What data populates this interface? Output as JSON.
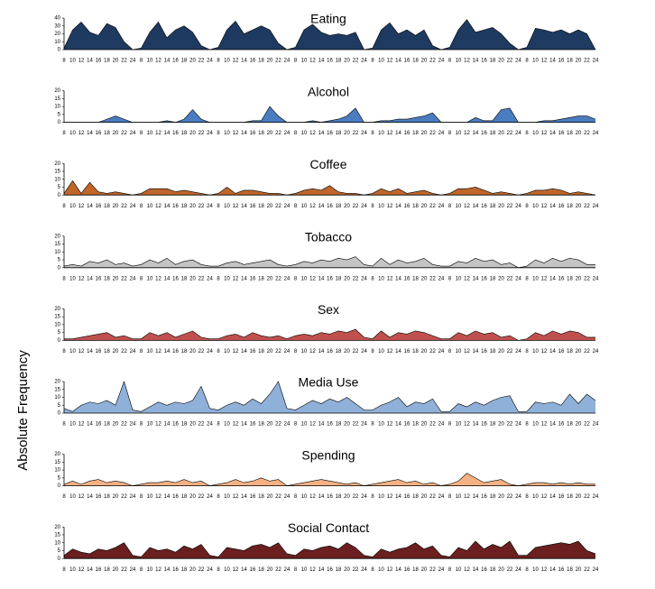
{
  "ylabel": "Absolute Frequency",
  "chart_data": [
    {
      "type": "area",
      "title": "Eating",
      "color": "#1f3a60",
      "categories": [
        8,
        10,
        12,
        14,
        16,
        18,
        20,
        22,
        24,
        8,
        10,
        12,
        14,
        16,
        18,
        20,
        22,
        24,
        8,
        10,
        12,
        14,
        16,
        18,
        20,
        22,
        24,
        8,
        10,
        12,
        14,
        16,
        18,
        20,
        22,
        24,
        8,
        10,
        12,
        14,
        16,
        18,
        20,
        22,
        24,
        8,
        10,
        12,
        14,
        16,
        18,
        20,
        22,
        24,
        8,
        10,
        12,
        14,
        16,
        18,
        20,
        22,
        24
      ],
      "values": [
        2,
        25,
        35,
        22,
        18,
        33,
        28,
        10,
        0,
        2,
        22,
        35,
        15,
        25,
        30,
        22,
        5,
        0,
        3,
        25,
        36,
        20,
        25,
        30,
        25,
        8,
        0,
        3,
        25,
        32,
        22,
        18,
        20,
        18,
        22,
        0,
        2,
        25,
        34,
        20,
        25,
        18,
        25,
        5,
        0,
        3,
        25,
        38,
        22,
        25,
        28,
        20,
        8,
        0,
        3,
        27,
        25,
        22,
        25,
        20,
        25,
        20,
        0
      ],
      "ylim": [
        0,
        40
      ],
      "yticks": [
        0,
        10,
        20,
        30,
        40
      ]
    },
    {
      "type": "area",
      "title": "Alcohol",
      "color": "#4a7cc0",
      "categories": [
        8,
        10,
        12,
        14,
        16,
        18,
        20,
        22,
        24,
        8,
        10,
        12,
        14,
        16,
        18,
        20,
        22,
        24,
        8,
        10,
        12,
        14,
        16,
        18,
        20,
        22,
        24,
        8,
        10,
        12,
        14,
        16,
        18,
        20,
        22,
        24,
        8,
        10,
        12,
        14,
        16,
        18,
        20,
        22,
        24,
        8,
        10,
        12,
        14,
        16,
        18,
        20,
        22,
        24,
        8,
        10,
        12,
        14,
        16,
        18,
        20,
        22,
        24
      ],
      "values": [
        0,
        0,
        0,
        0,
        0,
        2,
        4,
        2,
        0,
        0,
        0,
        0,
        1,
        0,
        2,
        8,
        2,
        0,
        0,
        0,
        0,
        0,
        1,
        1,
        10,
        4,
        0,
        0,
        0,
        1,
        0,
        1,
        2,
        4,
        9,
        0,
        0,
        1,
        1,
        2,
        2,
        3,
        4,
        6,
        0,
        0,
        0,
        0,
        3,
        1,
        1,
        8,
        9,
        0,
        0,
        0,
        1,
        1,
        2,
        3,
        4,
        4,
        2
      ],
      "ylim": [
        0,
        20
      ],
      "yticks": [
        0,
        5,
        10,
        15,
        20
      ]
    },
    {
      "type": "area",
      "title": "Coffee",
      "color": "#c0662a",
      "categories": [
        8,
        10,
        12,
        14,
        16,
        18,
        20,
        22,
        24,
        8,
        10,
        12,
        14,
        16,
        18,
        20,
        22,
        24,
        8,
        10,
        12,
        14,
        16,
        18,
        20,
        22,
        24,
        8,
        10,
        12,
        14,
        16,
        18,
        20,
        22,
        24,
        8,
        10,
        12,
        14,
        16,
        18,
        20,
        22,
        24,
        8,
        10,
        12,
        14,
        16,
        18,
        20,
        22,
        24,
        8,
        10,
        12,
        14,
        16,
        18,
        20,
        22,
        24
      ],
      "values": [
        1,
        9,
        1,
        8,
        2,
        1,
        2,
        1,
        0,
        1,
        4,
        4,
        4,
        2,
        3,
        2,
        1,
        0,
        1,
        5,
        1,
        3,
        3,
        2,
        1,
        1,
        0,
        1,
        3,
        4,
        3,
        6,
        2,
        1,
        1,
        0,
        1,
        4,
        2,
        4,
        1,
        2,
        3,
        1,
        0,
        1,
        4,
        4,
        5,
        3,
        1,
        2,
        1,
        0,
        1,
        3,
        3,
        4,
        3,
        1,
        2,
        1,
        0
      ],
      "ylim": [
        0,
        20
      ],
      "yticks": [
        0,
        5,
        10,
        15,
        20
      ]
    },
    {
      "type": "area",
      "title": "Tobacco",
      "color": "#c4c4c4",
      "categories": [
        8,
        10,
        12,
        14,
        16,
        18,
        20,
        22,
        24,
        8,
        10,
        12,
        14,
        16,
        18,
        20,
        22,
        24,
        8,
        10,
        12,
        14,
        16,
        18,
        20,
        22,
        24,
        8,
        10,
        12,
        14,
        16,
        18,
        20,
        22,
        24,
        8,
        10,
        12,
        14,
        16,
        18,
        20,
        22,
        24,
        8,
        10,
        12,
        14,
        16,
        18,
        20,
        22,
        24,
        8,
        10,
        12,
        14,
        16,
        18,
        20,
        22,
        24
      ],
      "values": [
        1,
        2,
        1,
        4,
        3,
        5,
        2,
        3,
        1,
        2,
        5,
        3,
        6,
        2,
        4,
        5,
        2,
        1,
        1,
        3,
        4,
        2,
        3,
        4,
        5,
        2,
        1,
        2,
        4,
        3,
        5,
        4,
        6,
        5,
        7,
        2,
        1,
        6,
        2,
        5,
        3,
        4,
        6,
        2,
        1,
        1,
        4,
        3,
        6,
        4,
        5,
        2,
        3,
        0,
        1,
        5,
        3,
        6,
        4,
        6,
        5,
        2,
        2
      ],
      "ylim": [
        0,
        20
      ],
      "yticks": [
        0,
        5,
        10,
        15,
        20
      ]
    },
    {
      "type": "area",
      "title": "Sex",
      "color": "#c0504d",
      "categories": [
        8,
        10,
        12,
        14,
        16,
        18,
        20,
        22,
        24,
        8,
        10,
        12,
        14,
        16,
        18,
        20,
        22,
        24,
        8,
        10,
        12,
        14,
        16,
        18,
        20,
        22,
        24,
        8,
        10,
        12,
        14,
        16,
        18,
        20,
        22,
        24,
        8,
        10,
        12,
        14,
        16,
        18,
        20,
        22,
        24,
        8,
        10,
        12,
        14,
        16,
        18,
        20,
        22,
        24,
        8,
        10,
        12,
        14,
        16,
        18,
        20,
        22,
        24
      ],
      "values": [
        1,
        1,
        2,
        3,
        4,
        5,
        2,
        3,
        1,
        1,
        5,
        3,
        5,
        2,
        4,
        6,
        2,
        1,
        1,
        3,
        4,
        2,
        5,
        3,
        2,
        3,
        1,
        3,
        4,
        3,
        5,
        4,
        6,
        5,
        7,
        2,
        1,
        6,
        2,
        5,
        4,
        6,
        5,
        3,
        1,
        1,
        5,
        3,
        6,
        4,
        5,
        2,
        3,
        0,
        1,
        5,
        3,
        6,
        4,
        6,
        5,
        2,
        2
      ],
      "ylim": [
        0,
        20
      ],
      "yticks": [
        0,
        5,
        10,
        15,
        20
      ]
    },
    {
      "type": "area",
      "title": "Media Use",
      "color": "#8fb0d8",
      "categories": [
        8,
        10,
        12,
        14,
        16,
        18,
        20,
        22,
        24,
        8,
        10,
        12,
        14,
        16,
        18,
        20,
        22,
        24,
        8,
        10,
        12,
        14,
        16,
        18,
        20,
        22,
        24,
        8,
        10,
        12,
        14,
        16,
        18,
        20,
        22,
        24,
        8,
        10,
        12,
        14,
        16,
        18,
        20,
        22,
        24,
        8,
        10,
        12,
        14,
        16,
        18,
        20,
        22,
        24,
        8,
        10,
        12,
        14,
        16,
        18,
        20,
        22,
        24
      ],
      "values": [
        3,
        1,
        5,
        7,
        6,
        8,
        5,
        20,
        2,
        1,
        4,
        7,
        5,
        7,
        6,
        8,
        17,
        3,
        2,
        5,
        7,
        5,
        9,
        6,
        12,
        20,
        3,
        2,
        5,
        8,
        6,
        9,
        7,
        10,
        6,
        2,
        2,
        5,
        7,
        10,
        4,
        7,
        6,
        9,
        1,
        1,
        6,
        4,
        7,
        5,
        8,
        10,
        11,
        1,
        1,
        7,
        6,
        7,
        5,
        12,
        6,
        12,
        8
      ],
      "ylim": [
        0,
        20
      ],
      "yticks": [
        0,
        5,
        10,
        15,
        20
      ]
    },
    {
      "type": "area",
      "title": "Spending",
      "color": "#f4b183",
      "categories": [
        8,
        10,
        12,
        14,
        16,
        18,
        20,
        22,
        24,
        8,
        10,
        12,
        14,
        16,
        18,
        20,
        22,
        24,
        8,
        10,
        12,
        14,
        16,
        18,
        20,
        22,
        24,
        8,
        10,
        12,
        14,
        16,
        18,
        20,
        22,
        24,
        8,
        10,
        12,
        14,
        16,
        18,
        20,
        22,
        24,
        8,
        10,
        12,
        14,
        16,
        18,
        20,
        22,
        24,
        8,
        10,
        12,
        14,
        16,
        18,
        20,
        22,
        24
      ],
      "values": [
        1,
        3,
        1,
        3,
        4,
        2,
        3,
        2,
        0,
        1,
        2,
        2,
        3,
        2,
        4,
        2,
        3,
        0,
        1,
        2,
        4,
        2,
        3,
        5,
        3,
        4,
        0,
        1,
        2,
        3,
        4,
        3,
        2,
        1,
        2,
        0,
        1,
        2,
        3,
        4,
        2,
        3,
        1,
        2,
        0,
        1,
        3,
        8,
        5,
        2,
        3,
        4,
        1,
        0,
        1,
        2,
        2,
        1,
        2,
        1,
        2,
        1,
        1
      ],
      "ylim": [
        0,
        20
      ],
      "yticks": [
        0,
        5,
        10,
        15,
        20
      ]
    },
    {
      "type": "area",
      "title": "Social Contact",
      "color": "#6b1f1f",
      "categories": [
        8,
        10,
        12,
        14,
        16,
        18,
        20,
        22,
        24,
        8,
        10,
        12,
        14,
        16,
        18,
        20,
        22,
        24,
        8,
        10,
        12,
        14,
        16,
        18,
        20,
        22,
        24,
        8,
        10,
        12,
        14,
        16,
        18,
        20,
        22,
        24,
        8,
        10,
        12,
        14,
        16,
        18,
        20,
        22,
        24,
        8,
        10,
        12,
        14,
        16,
        18,
        20,
        22,
        24,
        8,
        10,
        12,
        14,
        16,
        18,
        20,
        22,
        24
      ],
      "values": [
        2,
        6,
        4,
        3,
        6,
        5,
        7,
        10,
        2,
        1,
        7,
        5,
        6,
        4,
        8,
        6,
        9,
        2,
        1,
        7,
        6,
        5,
        8,
        9,
        7,
        10,
        3,
        2,
        6,
        5,
        7,
        8,
        6,
        10,
        7,
        2,
        1,
        6,
        4,
        6,
        7,
        10,
        6,
        8,
        2,
        1,
        7,
        5,
        11,
        6,
        9,
        7,
        11,
        2,
        2,
        7,
        8,
        9,
        10,
        9,
        11,
        5,
        3
      ],
      "ylim": [
        0,
        20
      ],
      "yticks": [
        0,
        5,
        10,
        15,
        20
      ]
    }
  ]
}
